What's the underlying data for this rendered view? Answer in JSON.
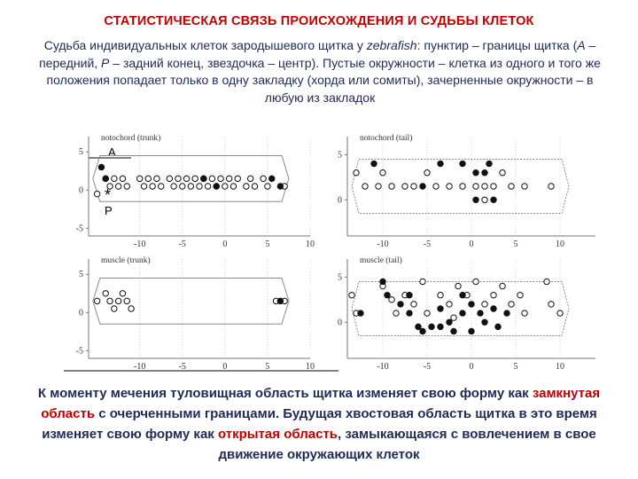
{
  "title": "СТАТИСТИЧЕСКАЯ СВЯЗЬ ПРОИСХОЖДЕНИЯ И СУДЬБЫ КЛЕТОК",
  "intro": {
    "p1": "Судьба индивидуальных клеток зародышевого щитка у ",
    "species": "zebrafish",
    "p2": ": пунктир – границы щитка (",
    "a_letter": "А",
    "p3": " – передний, ",
    "p_letter": "Р",
    "p4": " – задний конец, звездочка – центр). Пустые окружности – клетка из одного и того же положения попадает только в одну закладку (хорда или сомиты), зачерненные окружности – в любую из закладок"
  },
  "figure": {
    "marker_a": "A",
    "marker_star": "*",
    "marker_p": "P",
    "panels": [
      {
        "title": "notochord (trunk)",
        "y_ticks": [
          "5",
          "0",
          "-5"
        ],
        "x_ticks": [
          "-10",
          "-5",
          "0",
          "5",
          "10"
        ],
        "open_points": [
          [
            -14,
            1.5
          ],
          [
            -13.5,
            0.5
          ],
          [
            -13,
            1.5
          ],
          [
            -12.5,
            0.5
          ],
          [
            -12,
            1.5
          ],
          [
            -11.5,
            0.5
          ],
          [
            -10,
            1.5
          ],
          [
            -9.5,
            0.5
          ],
          [
            -9,
            1.5
          ],
          [
            -8.5,
            0.5
          ],
          [
            -8,
            1.5
          ],
          [
            -7.5,
            0.5
          ],
          [
            -6.5,
            1.5
          ],
          [
            -6,
            0.5
          ],
          [
            -5.5,
            1.5
          ],
          [
            -5,
            0.5
          ],
          [
            -4.5,
            1.5
          ],
          [
            -4,
            0.5
          ],
          [
            -3.5,
            1.5
          ],
          [
            -3,
            0.5
          ],
          [
            -2.5,
            1.5
          ],
          [
            -2,
            0.5
          ],
          [
            -1.5,
            1.5
          ],
          [
            -1,
            0.5
          ],
          [
            -0.5,
            1.5
          ],
          [
            0,
            0.5
          ],
          [
            0.5,
            1.5
          ],
          [
            1,
            0.5
          ],
          [
            1.5,
            1.5
          ],
          [
            2.5,
            0.5
          ],
          [
            3,
            1.5
          ],
          [
            3.5,
            0.5
          ],
          [
            4.5,
            1.5
          ],
          [
            5,
            0.5
          ],
          [
            7,
            0.5
          ],
          [
            -15,
            -0.5
          ]
        ],
        "filled_points": [
          [
            -14.5,
            3
          ],
          [
            -14,
            1.5
          ],
          [
            -2.5,
            1.5
          ],
          [
            -1,
            0.5
          ],
          [
            5.5,
            1.5
          ],
          [
            6.5,
            0.5
          ]
        ],
        "outline": "closed"
      },
      {
        "title": "notochord (tail)",
        "y_ticks": [
          "5",
          "0"
        ],
        "x_ticks": [
          "-10",
          "-5",
          "0",
          "5",
          "10"
        ],
        "open_points": [
          [
            -13,
            3
          ],
          [
            -12,
            1.5
          ],
          [
            -10.5,
            1.5
          ],
          [
            -10,
            3
          ],
          [
            -9,
            1.5
          ],
          [
            -7.5,
            1.5
          ],
          [
            -6.5,
            1.5
          ],
          [
            -5,
            3
          ],
          [
            -4,
            1.5
          ],
          [
            -2.5,
            1.5
          ],
          [
            -1,
            1.5
          ],
          [
            0.5,
            1.5
          ],
          [
            1.5,
            1.5
          ],
          [
            2.5,
            1.5
          ],
          [
            3.5,
            3
          ],
          [
            4.5,
            1.5
          ],
          [
            6,
            1.5
          ],
          [
            9,
            1.5
          ],
          [
            1.5,
            0
          ]
        ],
        "filled_points": [
          [
            -11,
            4
          ],
          [
            -3.5,
            4
          ],
          [
            -1,
            4
          ],
          [
            0.5,
            3
          ],
          [
            1.5,
            3
          ],
          [
            2,
            4
          ],
          [
            -5.5,
            1.5
          ],
          [
            0.5,
            0
          ],
          [
            2.5,
            0
          ]
        ],
        "outline": "open"
      },
      {
        "title": "muscle (trunk)",
        "y_ticks": [
          "5",
          "0",
          "-5"
        ],
        "x_ticks": [
          "-10",
          "-5",
          "0",
          "5",
          "10"
        ],
        "open_points": [
          [
            -15,
            1.5
          ],
          [
            -14,
            2.5
          ],
          [
            -13.5,
            1.5
          ],
          [
            -13,
            0.5
          ],
          [
            -12.5,
            1.5
          ],
          [
            -12,
            2.5
          ],
          [
            -11.5,
            1.5
          ],
          [
            -11,
            0.5
          ],
          [
            6,
            1.5
          ],
          [
            7,
            1.5
          ]
        ],
        "filled_points": [
          [
            6.5,
            1.5
          ]
        ],
        "outline": "closed"
      },
      {
        "title": "muscle (tail)",
        "y_ticks": [
          "5",
          "0"
        ],
        "x_ticks": [
          "-10",
          "-5",
          "0",
          "5",
          "10"
        ],
        "open_points": [
          [
            -13.5,
            3
          ],
          [
            -13,
            1
          ],
          [
            -10,
            4
          ],
          [
            -9,
            2.5
          ],
          [
            -8.5,
            1
          ],
          [
            -7.5,
            3
          ],
          [
            -6.5,
            2
          ],
          [
            -5.5,
            4.5
          ],
          [
            -5,
            1
          ],
          [
            -3.5,
            3
          ],
          [
            -2.5,
            2
          ],
          [
            -2,
            0.5
          ],
          [
            -1.5,
            4
          ],
          [
            -0.5,
            3
          ],
          [
            0.5,
            4.5
          ],
          [
            1.5,
            2
          ],
          [
            2.5,
            3
          ],
          [
            3.5,
            4
          ],
          [
            4.5,
            2
          ],
          [
            5.5,
            3
          ],
          [
            6,
            1
          ],
          [
            8.5,
            4.5
          ],
          [
            9,
            2
          ],
          [
            10,
            1
          ]
        ],
        "filled_points": [
          [
            -10,
            4.5
          ],
          [
            -9.5,
            3
          ],
          [
            -8,
            2
          ],
          [
            -7,
            1
          ],
          [
            -6,
            -0.5
          ],
          [
            -5.5,
            -1
          ],
          [
            -4.5,
            -0.5
          ],
          [
            -3.5,
            -0.5
          ],
          [
            -2.5,
            0
          ],
          [
            -2,
            -1
          ],
          [
            -1,
            1
          ],
          [
            0,
            -1
          ],
          [
            0,
            2
          ],
          [
            1,
            1
          ],
          [
            1.5,
            0
          ],
          [
            2.5,
            1.5
          ],
          [
            3,
            -0.5
          ],
          [
            4,
            1
          ],
          [
            -12.5,
            1
          ],
          [
            -7,
            3
          ],
          [
            -3.5,
            1.5
          ],
          [
            -1,
            3
          ]
        ],
        "outline": "open"
      }
    ]
  },
  "bottom": {
    "t1": "К моменту мечения туловищная область щитка изменяет свою форму как ",
    "r1": "замкнутая область",
    "t2": " с очерченными границами. Будущая хвостовая область щитка в это время изменяет свою форму как ",
    "r2": "открытая область",
    "t3": ", замыкающаяся с вовлечением в свое движение окружающих клеток"
  }
}
